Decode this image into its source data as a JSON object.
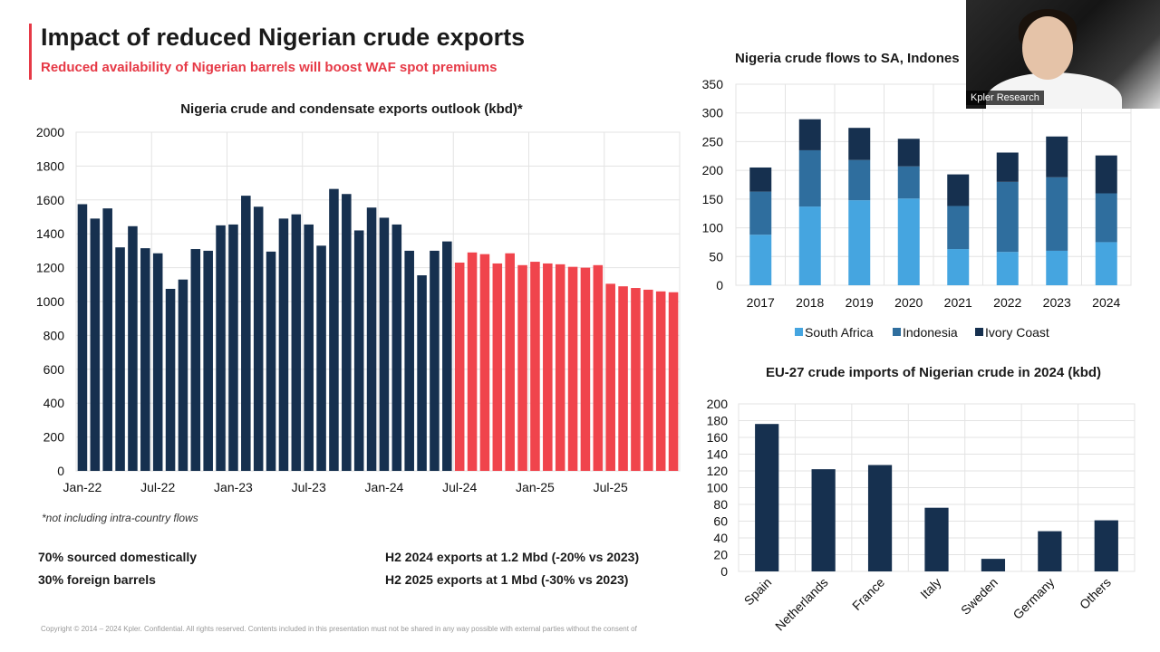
{
  "slide": {
    "title": "Impact of reduced Nigerian crude exports",
    "subtitle": "Reduced availability of Nigerian barrels will boost WAF spot premiums",
    "footnote": "*not including intra-country flows",
    "notes_left": [
      "70% sourced domestically",
      "30% foreign barrels"
    ],
    "notes_right": [
      "H2 2024 exports at 1.2 Mbd (-20% vs 2023)",
      "H2 2025 exports at 1 Mbd (-30% vs 2023)"
    ],
    "copyright": "Copyright © 2014 – 2024 Kpler. Confidential. All rights reserved. Contents included in this presentation must not be shared in any way possible with external parties without the consent of",
    "webcam_label": "Kpler Research"
  },
  "colors": {
    "accent": "#e63946",
    "historical": "#16304f",
    "forecast": "#f0444c",
    "south_africa": "#45a5e0",
    "indonesia": "#2f6e9e",
    "ivory_coast": "#16304f",
    "eu": "#16304f"
  },
  "chart_data": [
    {
      "type": "bar",
      "title": "Nigeria crude and condensate exports outlook (kbd)*",
      "ylim": [
        0,
        2000
      ],
      "yticks": [
        0,
        200,
        400,
        600,
        800,
        1000,
        1200,
        1400,
        1600,
        1800,
        2000
      ],
      "xtick_labels": [
        "Jan-22",
        "Jul-22",
        "Jan-23",
        "Jul-23",
        "Jan-24",
        "Jul-24",
        "Jan-25",
        "Jul-25"
      ],
      "xtick_months": [
        0,
        6,
        12,
        18,
        24,
        30,
        36,
        42
      ],
      "start_month": "Jan-22",
      "forecast_start_month": "Jul-24",
      "values": [
        1575,
        1490,
        1550,
        1320,
        1445,
        1315,
        1285,
        1075,
        1130,
        1310,
        1300,
        1450,
        1455,
        1625,
        1560,
        1295,
        1490,
        1515,
        1455,
        1330,
        1665,
        1635,
        1420,
        1555,
        1495,
        1455,
        1300,
        1155,
        1300,
        1355,
        1230,
        1290,
        1280,
        1225,
        1285,
        1215,
        1235,
        1225,
        1220,
        1205,
        1200,
        1215,
        1105,
        1090,
        1080,
        1070,
        1060,
        1055
      ]
    },
    {
      "type": "bar",
      "stacked": true,
      "title": "Nigeria crude flows to SA, Indones",
      "categories": [
        "2017",
        "2018",
        "2019",
        "2020",
        "2021",
        "2022",
        "2023",
        "2024"
      ],
      "ylim": [
        0,
        350
      ],
      "yticks": [
        0,
        50,
        100,
        150,
        200,
        250,
        300,
        350
      ],
      "legend_position": "bottom",
      "series": [
        {
          "name": "South Africa",
          "values": [
            88,
            137,
            148,
            151,
            63,
            58,
            60,
            75
          ]
        },
        {
          "name": "Indonesia",
          "values": [
            75,
            98,
            70,
            56,
            75,
            122,
            128,
            85
          ]
        },
        {
          "name": "Ivory Coast",
          "values": [
            42,
            54,
            56,
            48,
            55,
            51,
            71,
            66
          ]
        }
      ]
    },
    {
      "type": "bar",
      "title": "EU-27 crude imports of Nigerian crude in 2024 (kbd)",
      "categories": [
        "Spain",
        "Netherlands",
        "France",
        "Italy",
        "Sweden",
        "Germany",
        "Others"
      ],
      "values": [
        176,
        122,
        127,
        76,
        15,
        48,
        61
      ],
      "ylim": [
        0,
        200
      ],
      "yticks": [
        0,
        20,
        40,
        60,
        80,
        100,
        120,
        140,
        160,
        180,
        200
      ]
    }
  ]
}
